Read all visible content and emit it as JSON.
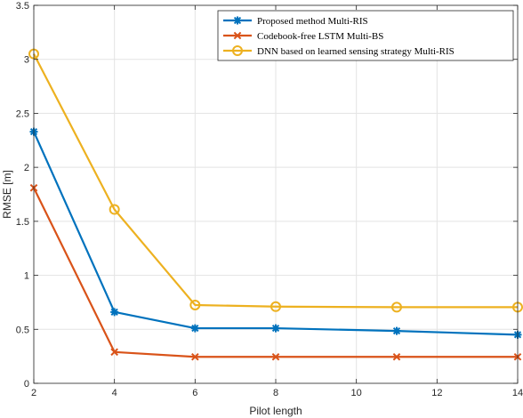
{
  "chart_data": {
    "type": "line",
    "xlabel": "Pilot length",
    "ylabel": "RMSE  [m]",
    "xlim": [
      2,
      14
    ],
    "ylim": [
      0,
      3.5
    ],
    "xticks": [
      "2",
      "4",
      "6",
      "8",
      "10",
      "12",
      "14"
    ],
    "yticks": [
      "0",
      "0.5",
      "1",
      "1.5",
      "2",
      "2.5",
      "3",
      "3.5"
    ],
    "grid": true,
    "legend_position": "top-right",
    "series": [
      {
        "name": "Proposed method Multi-RIS",
        "color": "#0072BD",
        "marker": "asterisk",
        "x": [
          2,
          4,
          6,
          8,
          11,
          14
        ],
        "y": [
          2.33,
          0.66,
          0.51,
          0.51,
          0.485,
          0.45
        ]
      },
      {
        "name": "Codebook-free LSTM Multi-BS",
        "color": "#D95319",
        "marker": "x",
        "x": [
          2,
          4,
          6,
          8,
          11,
          14
        ],
        "y": [
          1.81,
          0.29,
          0.245,
          0.245,
          0.245,
          0.245
        ]
      },
      {
        "name": "DNN based on learned sensing strategy Multi-RIS",
        "color": "#EDB120",
        "marker": "circle",
        "x": [
          2,
          4,
          6,
          8,
          11,
          14
        ],
        "y": [
          3.05,
          1.61,
          0.725,
          0.71,
          0.705,
          0.705
        ]
      }
    ]
  }
}
